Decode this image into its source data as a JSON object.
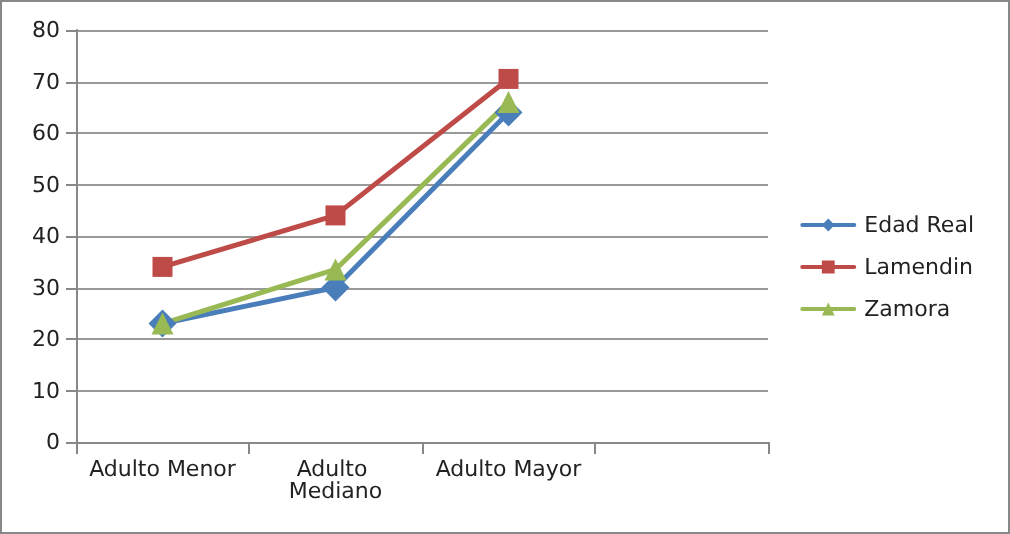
{
  "chart_data": {
    "type": "line",
    "categories": [
      "Adulto Menor",
      "Adulto Mediano",
      "Adulto Mayor",
      null
    ],
    "series": [
      {
        "name": "Edad Real",
        "color": "#4a7ebb",
        "marker": "diamond",
        "values": [
          23,
          30,
          64,
          null
        ]
      },
      {
        "name": "Lamendin",
        "color": "#be4b48",
        "marker": "square",
        "values": [
          34,
          44,
          70.5,
          null
        ]
      },
      {
        "name": "Zamora",
        "color": "#98b954",
        "marker": "triangle",
        "values": [
          23,
          33.5,
          66,
          null
        ]
      }
    ],
    "ylim": [
      0,
      80
    ],
    "yticks": [
      0,
      10,
      20,
      30,
      40,
      50,
      60,
      70,
      80
    ],
    "grid": "y",
    "legend": "right"
  }
}
